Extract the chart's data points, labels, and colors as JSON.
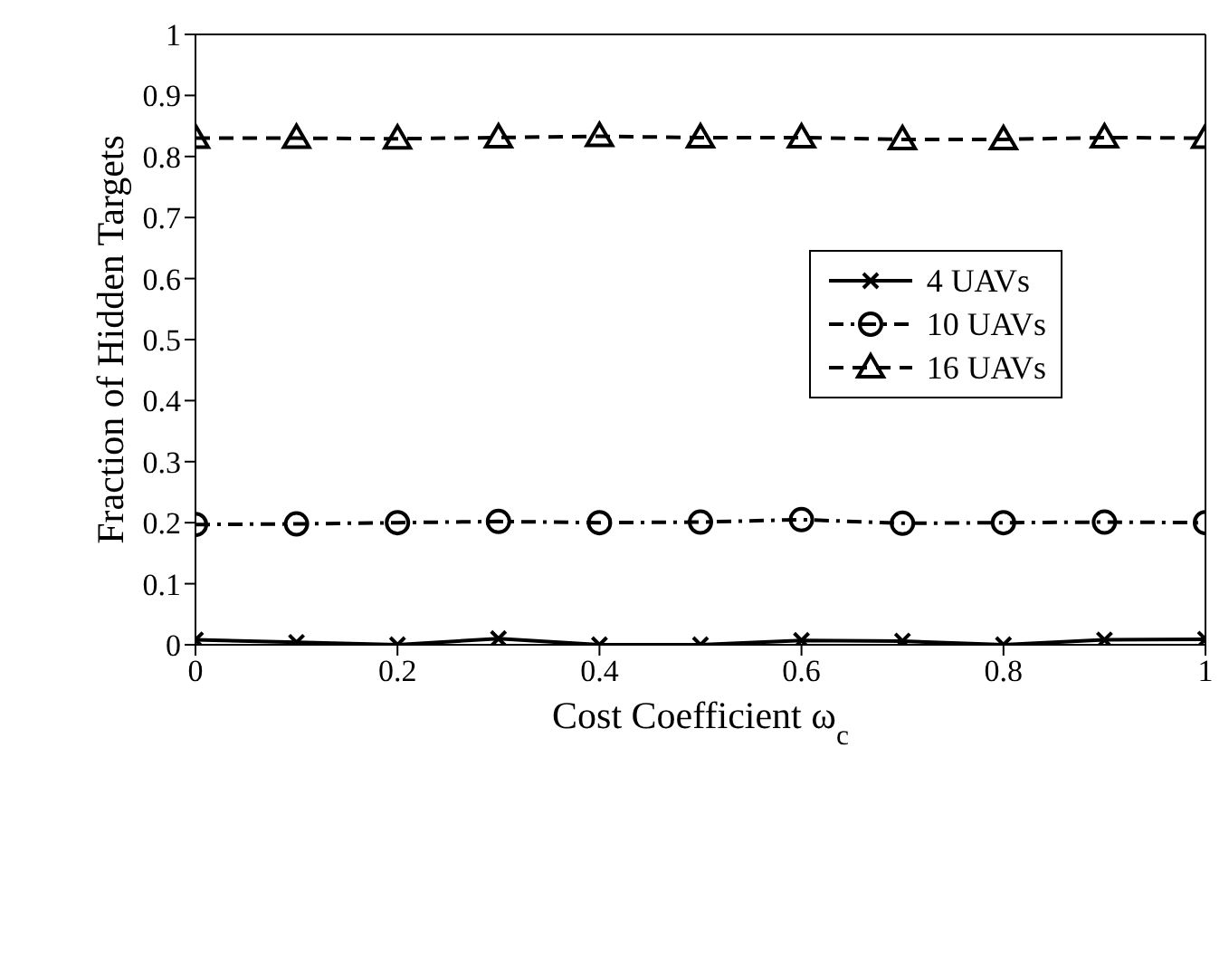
{
  "chart_data": {
    "type": "line",
    "xlabel": "Cost Coefficient ω$_{c}$",
    "ylabel": "Fraction of Hidden Targets",
    "x": [
      0,
      0.1,
      0.2,
      0.3,
      0.4,
      0.5,
      0.6,
      0.7,
      0.8,
      0.9,
      1
    ],
    "series": [
      {
        "name": "4 UAVs",
        "color": "#000000",
        "marker": "cross",
        "line_style": "solid",
        "values": [
          0.008,
          0.004,
          0,
          0.01,
          0,
          0,
          0.007,
          0.006,
          0,
          0.008,
          0.009
        ]
      },
      {
        "name": "10 UAVs",
        "color": "#000000",
        "marker": "circle",
        "line_style": "dashdot",
        "values": [
          0.197,
          0.198,
          0.2,
          0.202,
          0.2,
          0.201,
          0.205,
          0.199,
          0.2,
          0.201,
          0.2
        ]
      },
      {
        "name": "16 UAVs",
        "color": "#000000",
        "marker": "triangle",
        "line_style": "dashed",
        "values": [
          0.83,
          0.83,
          0.829,
          0.831,
          0.833,
          0.831,
          0.831,
          0.828,
          0.828,
          0.831,
          0.83
        ]
      }
    ],
    "xlim": [
      0,
      1
    ],
    "xticks": [
      0,
      0.2,
      0.4,
      0.6,
      0.8,
      1
    ],
    "ylim": [
      0,
      1
    ],
    "yticks": [
      0,
      0.1,
      0.2,
      0.3,
      0.4,
      0.5,
      0.6,
      0.7,
      0.8,
      0.9,
      1
    ],
    "grid": false,
    "legend": "right"
  }
}
